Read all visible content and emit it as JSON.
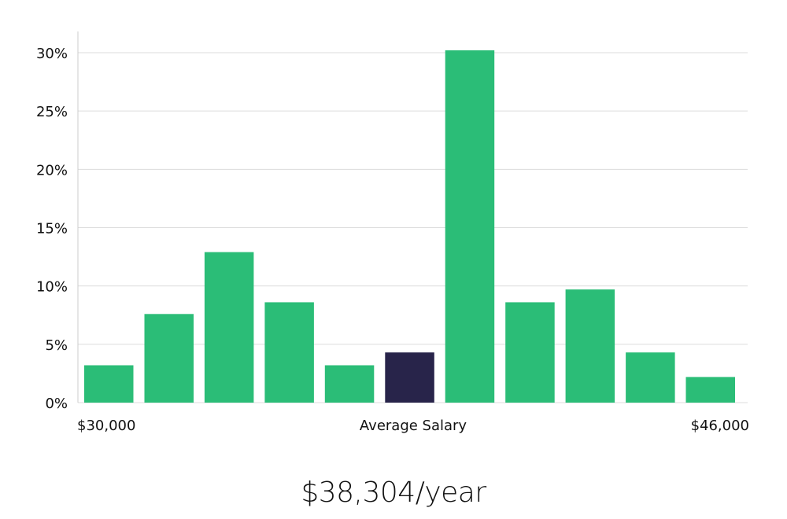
{
  "chart_data": {
    "type": "bar",
    "xlabel": "Average Salary",
    "x_start_label": "$30,000",
    "x_end_label": "$46,000",
    "ylim": [
      0,
      32
    ],
    "yticks": [
      0,
      5,
      10,
      15,
      20,
      25,
      30
    ],
    "ytick_labels": [
      "0%",
      "5%",
      "10%",
      "15%",
      "20%",
      "25%",
      "30%"
    ],
    "grid": true,
    "values": [
      3.2,
      7.6,
      12.9,
      8.6,
      3.2,
      4.3,
      30.2,
      8.6,
      9.7,
      4.3,
      2.2
    ],
    "highlight_index": 5,
    "colors": {
      "bar": "#2bbd77",
      "highlight": "#28244a",
      "grid": "#dcdcdc",
      "axis": "#cccccc"
    }
  },
  "summary": {
    "salary_text": "$38,304/year"
  }
}
